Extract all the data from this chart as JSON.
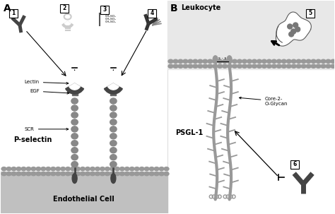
{
  "bg_color": "#ffffff",
  "panel_A_label": "A",
  "panel_B_label": "B",
  "label_1": "1",
  "label_2": "2",
  "label_3": "3",
  "label_4": "4",
  "label_5": "5",
  "label_6": "6",
  "lectin_label": "Lectin",
  "egf_label": "EGF",
  "scr_label": "SCR",
  "p_selectin_label": "P-selectin",
  "endothelial_label": "Endothelial Cell",
  "leukocyte_label": "Leukocyte",
  "psgl1_label": "PSGL-1",
  "core2_label": "Core-2-\nO-Glycan",
  "ch2so3_line1": "CH₂SO₃",
  "ch2so3_line2": "CH₂SO₃",
  "ch2so3_line3": "CH₂SO₃",
  "ss_label": "s - s",
  "gray_light": "#cccccc",
  "gray_mid": "#999999",
  "gray_dark": "#555555",
  "gray_very_dark": "#333333",
  "endothelial_bg": "#c0c0c0",
  "leukocyte_bg": "#e8e8e8",
  "bead_color": "#888888",
  "lectin_color": "#333333",
  "psgl_color": "#999999"
}
